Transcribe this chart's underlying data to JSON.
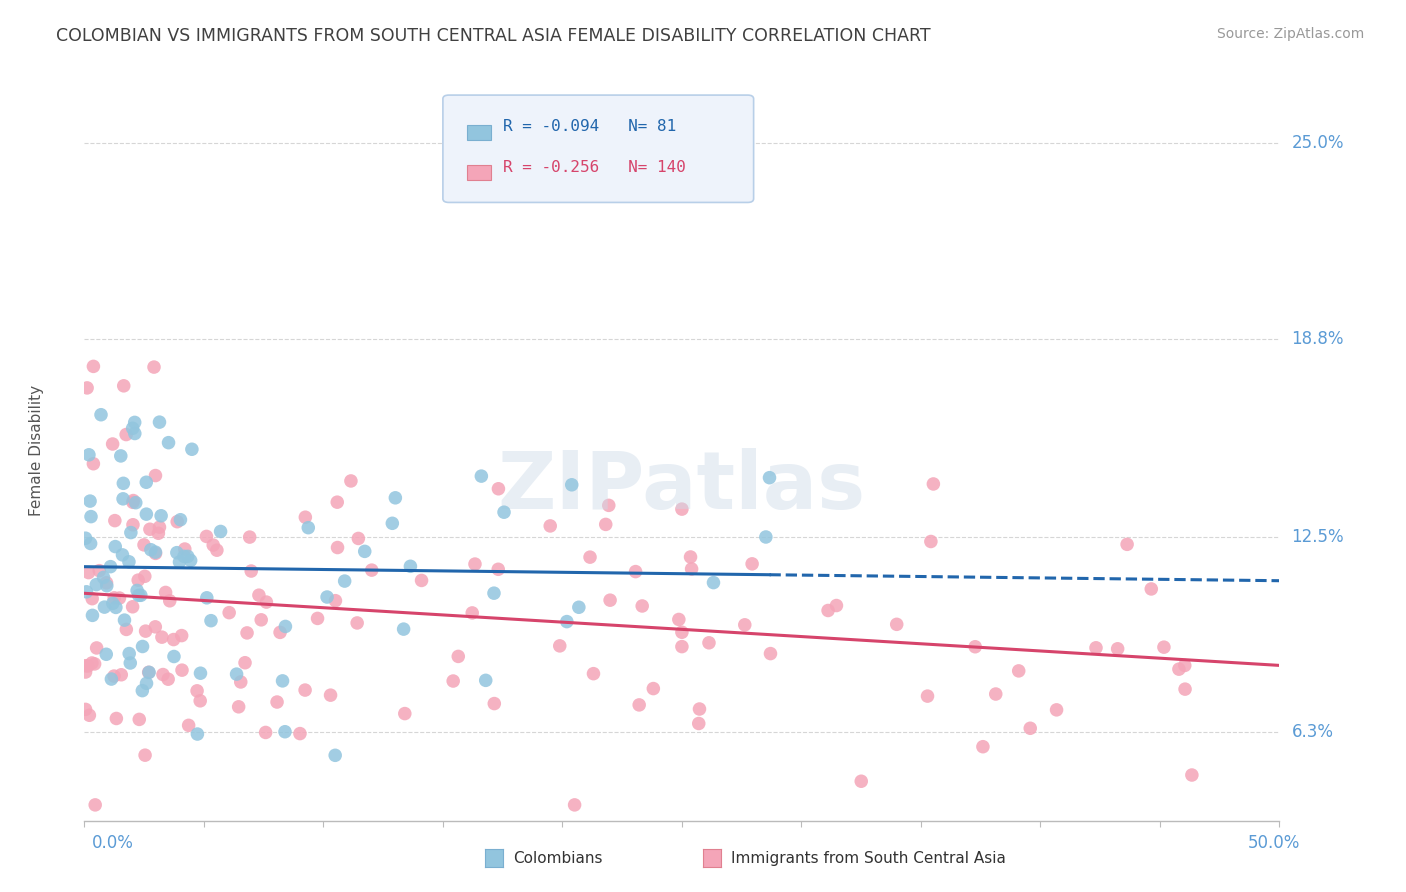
{
  "title": "COLOMBIAN VS IMMIGRANTS FROM SOUTH CENTRAL ASIA FEMALE DISABILITY CORRELATION CHART",
  "source": "Source: ZipAtlas.com",
  "ylabel_ticks": [
    6.3,
    12.5,
    18.8,
    25.0
  ],
  "ylabel_labels": [
    "6.3%",
    "12.5%",
    "18.8%",
    "25.0%"
  ],
  "xmin": 0.0,
  "xmax": 50.0,
  "ymin": 3.5,
  "ymax": 27.0,
  "series1_label": "Colombians",
  "series1_R": "-0.094",
  "series1_N": "81",
  "series1_color": "#92c5de",
  "series1_line_color": "#2166ac",
  "series2_label": "Immigrants from South Central Asia",
  "series2_R": "-0.256",
  "series2_N": "140",
  "series2_color": "#f4a5b8",
  "series2_line_color": "#d6446b",
  "watermark": "ZIPatlas",
  "background_color": "#ffffff",
  "grid_color": "#cccccc",
  "tick_label_color": "#5b9bd5",
  "title_color": "#404040"
}
